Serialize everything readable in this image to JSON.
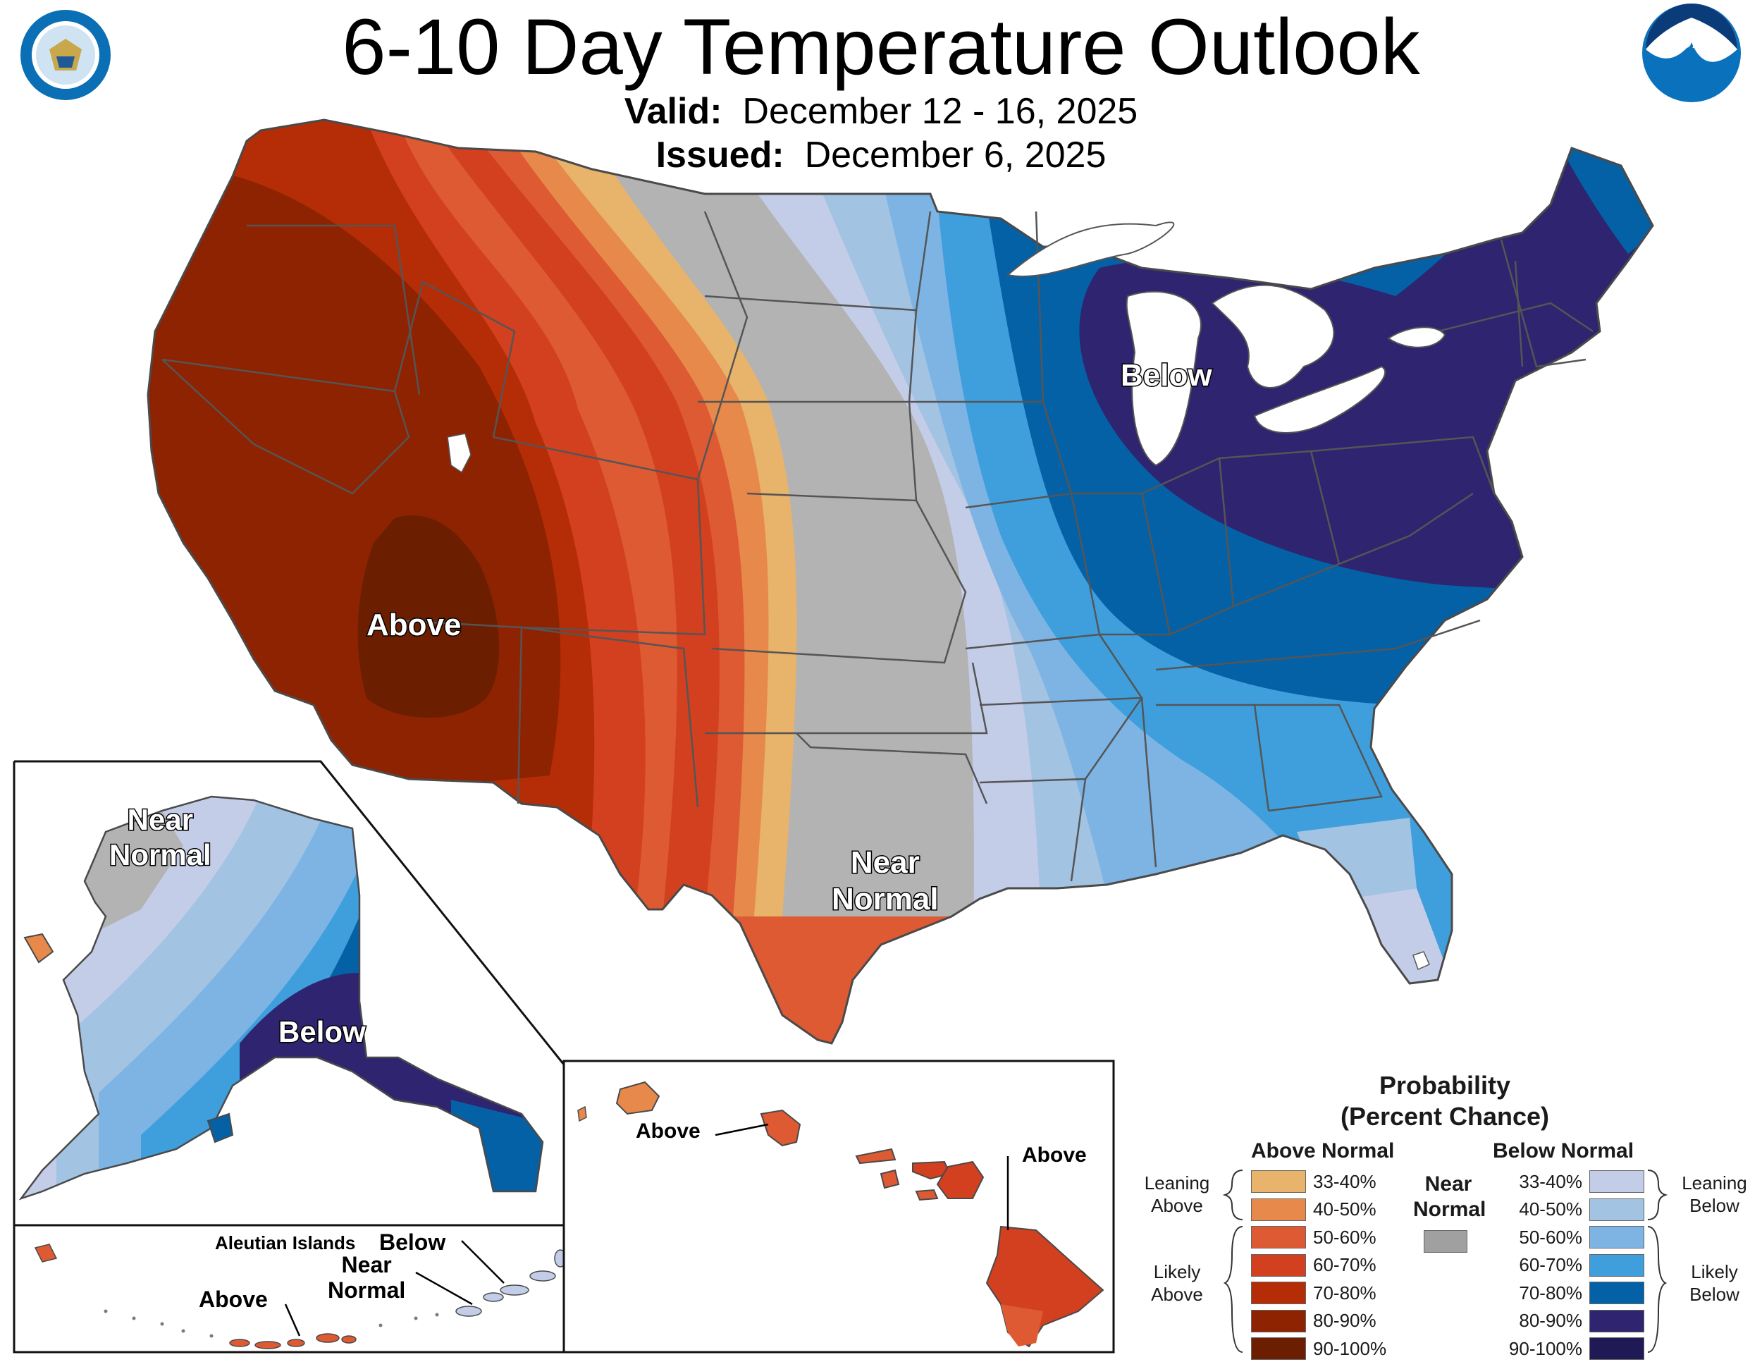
{
  "header": {
    "title": "6-10 Day Temperature Outlook",
    "valid_label": "Valid:",
    "valid_value": "December 12 - 16, 2025",
    "issued_label": "Issued:",
    "issued_value": "December 6, 2025"
  },
  "logos": {
    "commerce_seal": "DEPARTMENT OF COMMERCE - UNITED STATES OF AMERICA",
    "noaa": "NOAA"
  },
  "conus_labels": {
    "above": "Above",
    "below": "Below",
    "near_normal_line1": "Near",
    "near_normal_line2": "Normal"
  },
  "alaska_labels": {
    "near_normal_line1": "Near",
    "near_normal_line2": "Normal",
    "below": "Below"
  },
  "aleutian_labels": {
    "title": "Aleutian Islands",
    "below": "Below",
    "near_normal_line1": "Near",
    "near_normal_line2": "Normal",
    "above": "Above"
  },
  "hawaii_labels": {
    "above_left": "Above",
    "above_right": "Above"
  },
  "legend": {
    "title_line1": "Probability",
    "title_line2": "(Percent Chance)",
    "above_header": "Above Normal",
    "below_header": "Below Normal",
    "near_line1": "Near",
    "near_line2": "Normal",
    "near_color": "#a0a0a0",
    "leaning_above_line1": "Leaning",
    "leaning_above_line2": "Above",
    "likely_above_line1": "Likely",
    "likely_above_line2": "Above",
    "leaning_below_line1": "Leaning",
    "leaning_below_line2": "Below",
    "likely_below_line1": "Likely",
    "likely_below_line2": "Below",
    "above_categories": [
      {
        "range": "33-40%",
        "color": "#e8b36a"
      },
      {
        "range": "40-50%",
        "color": "#e6894a"
      },
      {
        "range": "50-60%",
        "color": "#dd5a33"
      },
      {
        "range": "60-70%",
        "color": "#d2401f"
      },
      {
        "range": "70-80%",
        "color": "#b52d06"
      },
      {
        "range": "80-90%",
        "color": "#8e2302"
      },
      {
        "range": "90-100%",
        "color": "#6b1f00"
      }
    ],
    "below_categories": [
      {
        "range": "33-40%",
        "color": "#c4cde8"
      },
      {
        "range": "40-50%",
        "color": "#a3c3e3"
      },
      {
        "range": "50-60%",
        "color": "#7db4e3"
      },
      {
        "range": "60-70%",
        "color": "#3f9fdd"
      },
      {
        "range": "70-80%",
        "color": "#0561a5"
      },
      {
        "range": "80-90%",
        "color": "#2e2470"
      },
      {
        "range": "90-100%",
        "color": "#1f1a55"
      }
    ]
  },
  "colors": {
    "near_normal": "#b3b3b3",
    "lakes": "#ffffff",
    "boundary": "#4a4a4a"
  }
}
